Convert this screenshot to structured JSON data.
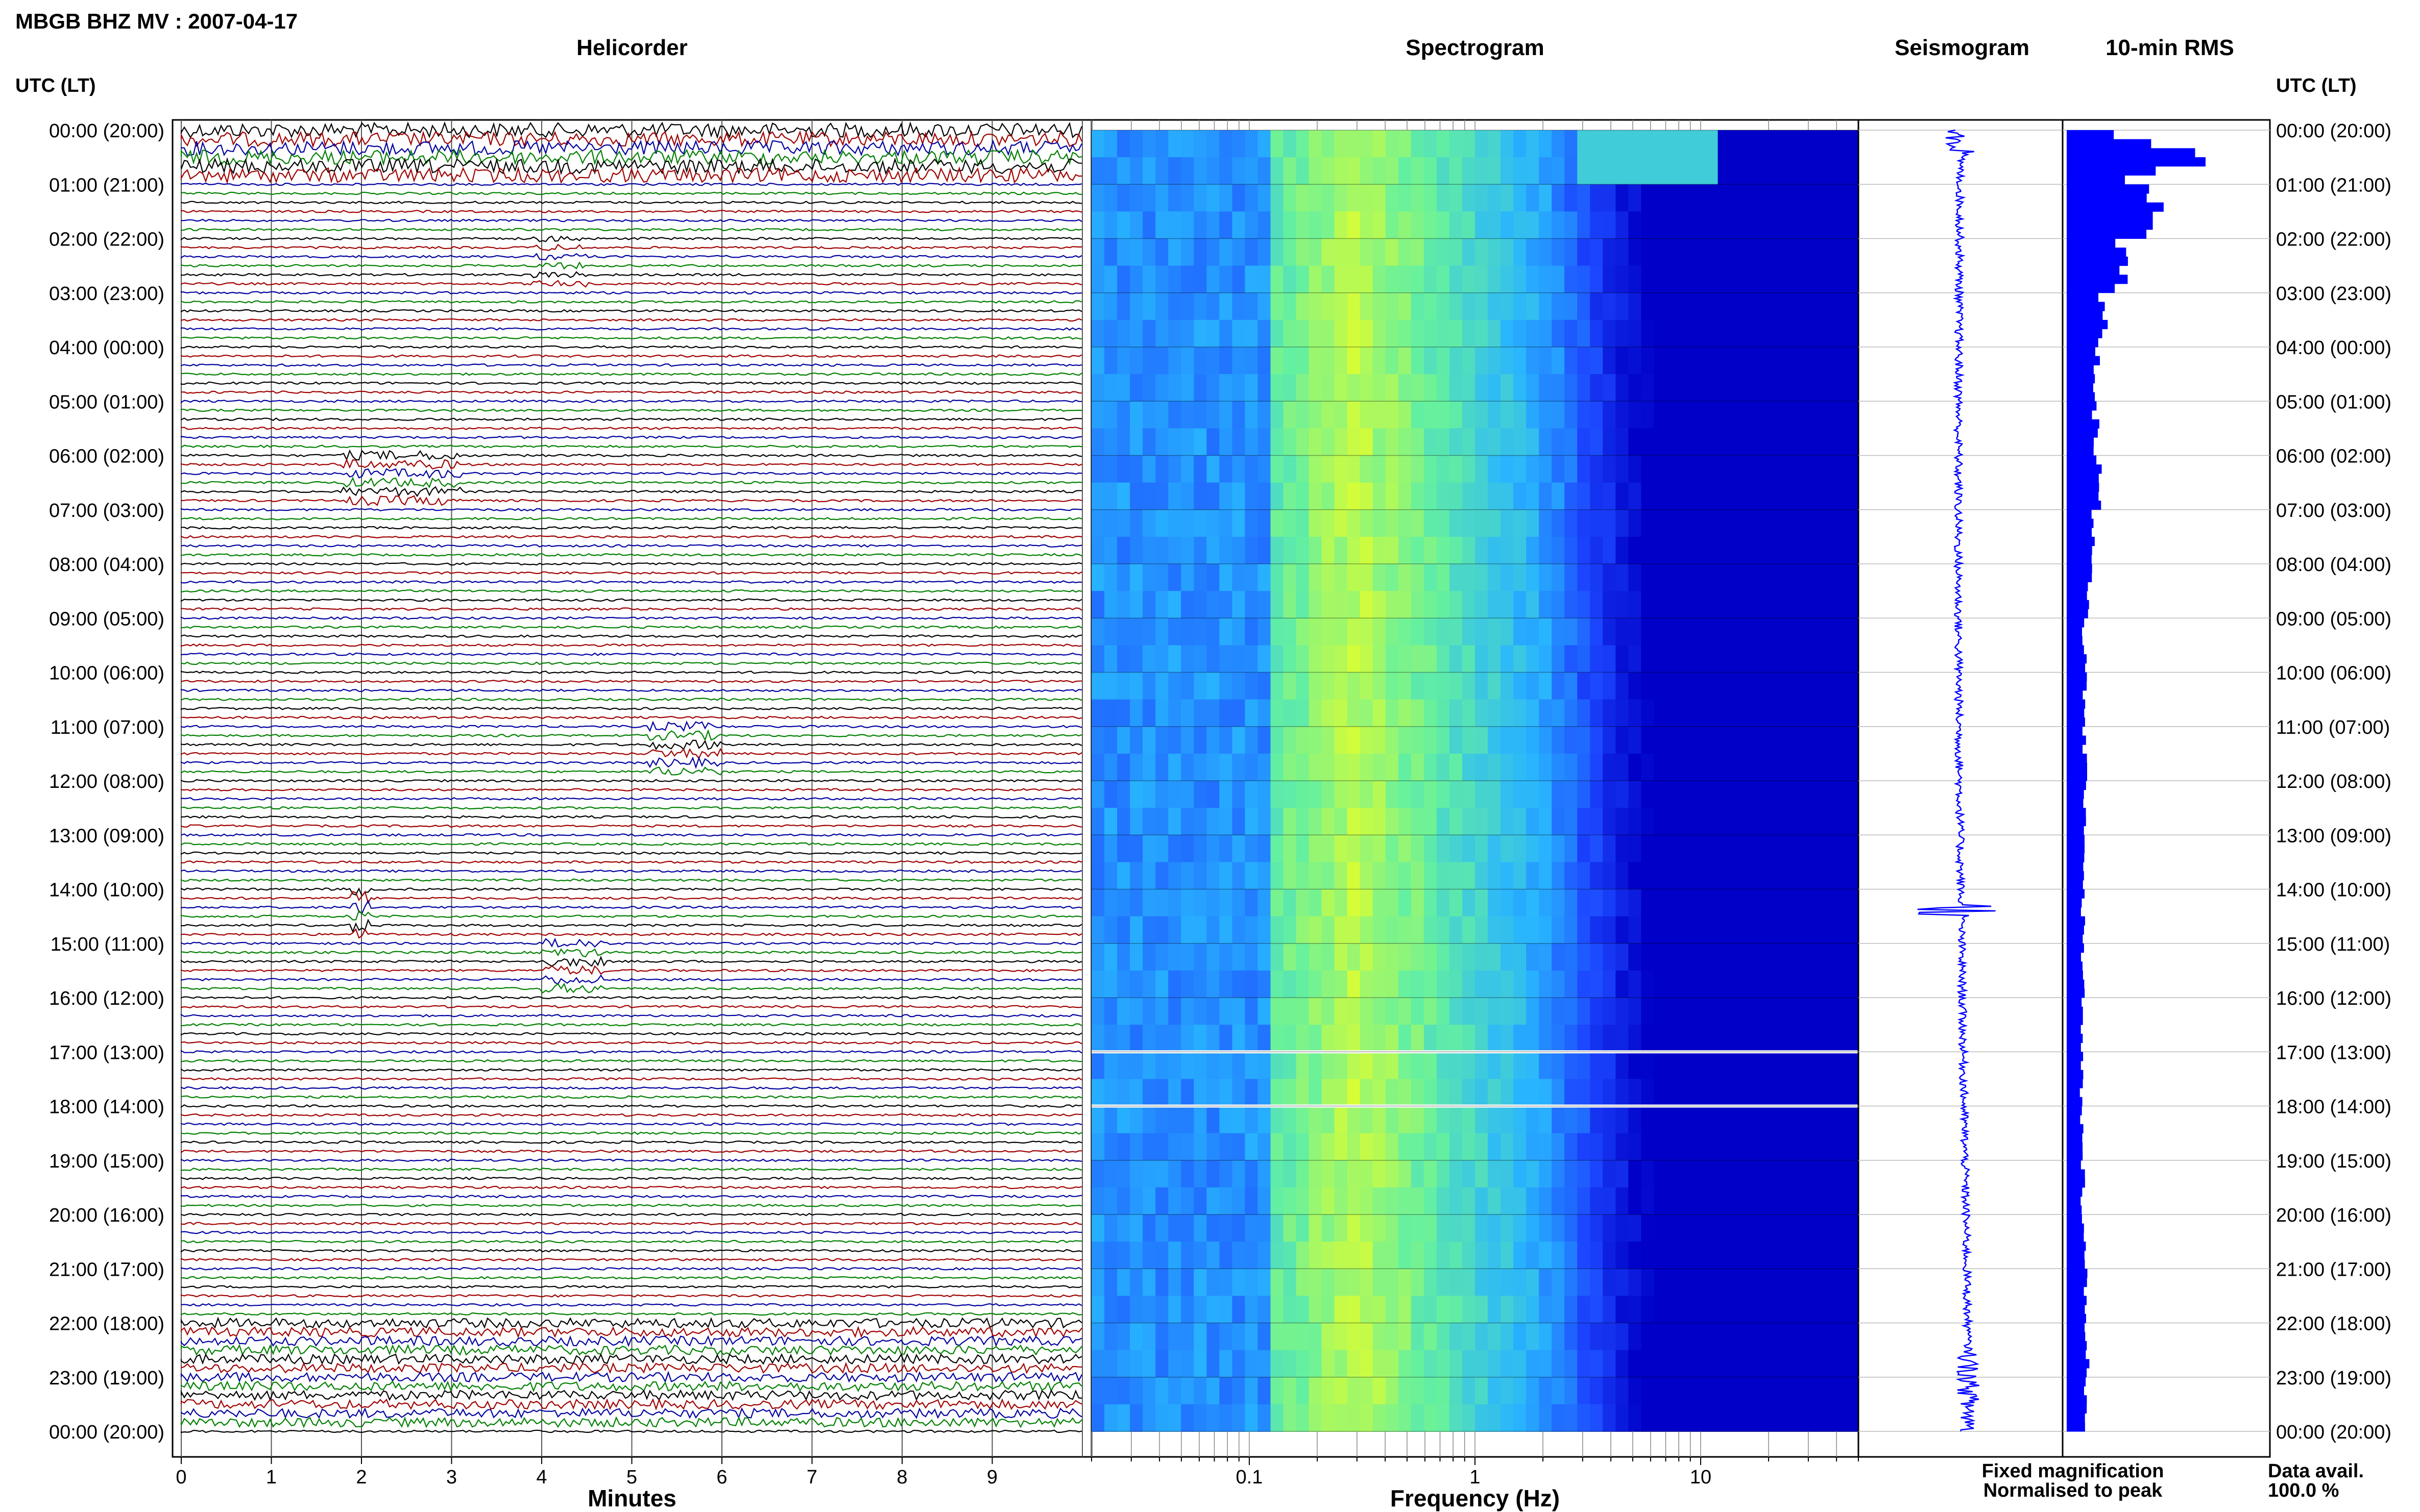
{
  "header": {
    "station_title": "MBGB BHZ MV : 2007-04-17",
    "utc_lt_label": "UTC (LT)"
  },
  "panels": {
    "helicorder": "Helicorder",
    "spectrogram": "Spectrogram",
    "seismogram": "Seismogram",
    "rms": "10-min RMS"
  },
  "time_labels": [
    "00:00 (20:00)",
    "01:00 (21:00)",
    "02:00 (22:00)",
    "03:00 (23:00)",
    "04:00 (00:00)",
    "05:00 (01:00)",
    "06:00 (02:00)",
    "07:00 (03:00)",
    "08:00 (04:00)",
    "09:00 (05:00)",
    "10:00 (06:00)",
    "11:00 (07:00)",
    "12:00 (08:00)",
    "13:00 (09:00)",
    "14:00 (10:00)",
    "15:00 (11:00)",
    "16:00 (12:00)",
    "17:00 (13:00)",
    "18:00 (14:00)",
    "19:00 (15:00)",
    "20:00 (16:00)",
    "21:00 (17:00)",
    "22:00 (18:00)",
    "23:00 (19:00)",
    "00:00 (20:00)"
  ],
  "footer": {
    "minutes_label": "Minutes",
    "frequency_label": "Frequency (Hz)",
    "fixed_magnification": "Fixed magnification",
    "normalised_to_peak": "Normalised to peak",
    "data_avail_label": "Data avail.",
    "data_avail_value": "100.0 %"
  },
  "legend_colors": {
    "fixed_magnification": "#0000ff",
    "normalised_to_peak": "#ff0000"
  },
  "chart_data": [
    {
      "type": "line",
      "title": "Helicorder",
      "xlabel": "Minutes",
      "x_ticks": [
        "0",
        "1",
        "2",
        "3",
        "4",
        "5",
        "6",
        "7",
        "8",
        "9"
      ],
      "xlim": [
        0,
        10
      ],
      "rows_per_hour": 6,
      "trace_colors": [
        "#000000",
        "#a00000",
        "#0000a0",
        "#008000"
      ],
      "events": [
        {
          "hour": 0,
          "minute_start": 0,
          "minute_end": 10,
          "amplitude": "high"
        },
        {
          "hour": 2,
          "minute_start": 3.9,
          "minute_end": 4.5,
          "amplitude": "low"
        },
        {
          "hour": 6,
          "minute_start": 1.8,
          "minute_end": 3.1,
          "amplitude": "medium"
        },
        {
          "hour": 11,
          "minute_start": 5.2,
          "minute_end": 6.0,
          "amplitude": "medium"
        },
        {
          "hour": 14,
          "minute_start": 1.9,
          "minute_end": 2.1,
          "amplitude": "high"
        },
        {
          "hour": 15,
          "minute_start": 4.0,
          "minute_end": 4.7,
          "amplitude": "medium"
        },
        {
          "hour": 22,
          "minute_start": 0,
          "minute_end": 10,
          "amplitude": "medium"
        },
        {
          "hour": 23,
          "minute_start": 0,
          "minute_end": 10,
          "amplitude": "medium"
        }
      ]
    },
    {
      "type": "heatmap",
      "title": "Spectrogram",
      "xlabel": "Frequency (Hz)",
      "x_scale": "log",
      "xlim": [
        0.02,
        50
      ],
      "x_ticks": [
        "0.1",
        "1",
        "10"
      ],
      "x_tick_values": [
        0.1,
        1,
        10
      ],
      "colormap": [
        "#0000c8",
        "#1c46ff",
        "#28b4ff",
        "#64f0a0",
        "#e6ff28"
      ],
      "data_gaps_utc_hours": [
        17.0,
        18.0
      ],
      "energy_peak_hz": [
        0.15,
        0.5
      ]
    },
    {
      "type": "line",
      "title": "Seismogram",
      "color": "#0000ff"
    },
    {
      "type": "bar",
      "title": "10-min RMS",
      "color": "#0000ff",
      "relative_values": [
        1.0,
        0.62,
        0.38,
        0.25,
        0.2,
        0.2,
        0.22,
        0.18,
        0.15,
        0.12,
        0.12,
        0.12,
        0.13,
        0.12,
        0.11,
        0.11,
        0.1,
        0.1,
        0.1,
        0.11,
        0.12,
        0.13,
        0.14,
        0.12,
        0.1,
        0.1
      ]
    }
  ]
}
